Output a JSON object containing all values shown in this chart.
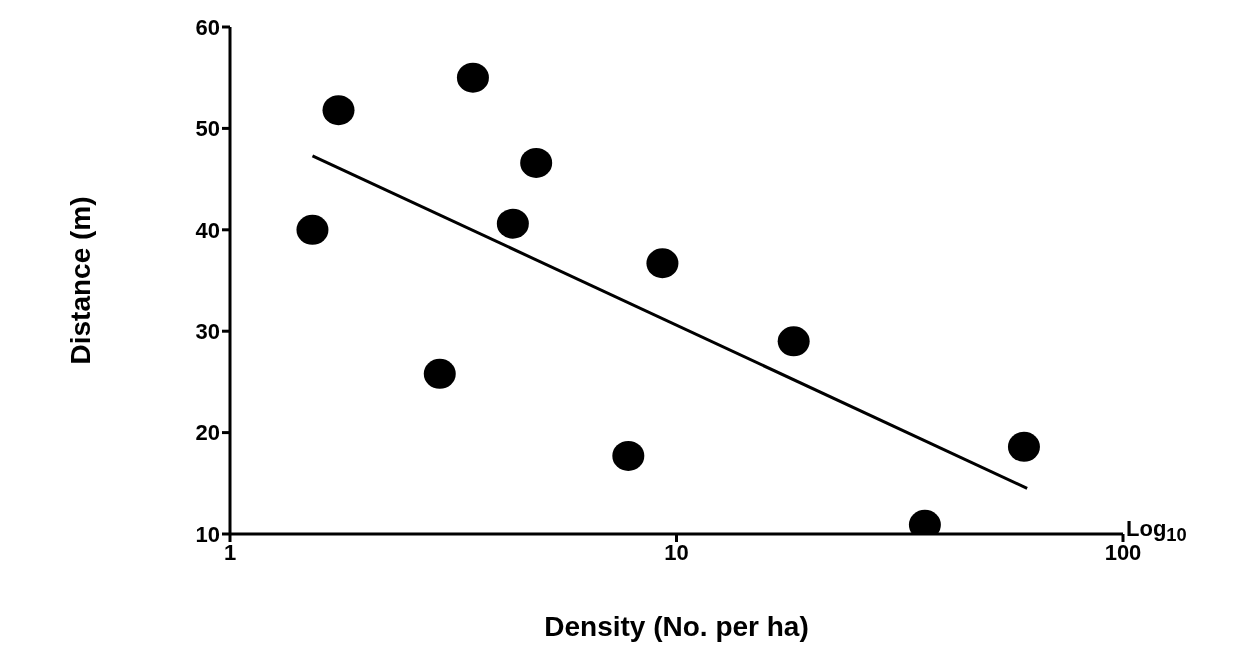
{
  "chart_data": {
    "type": "scatter",
    "xlabel": "Density (No. per ha)",
    "ylabel": "Distance (m)",
    "log": "x",
    "xlim": [
      1,
      100
    ],
    "xticks": [
      1,
      10,
      100
    ],
    "ylim": [
      10,
      60
    ],
    "yticks": [
      10,
      20,
      30,
      40,
      50,
      60
    ],
    "marker": "circle",
    "annotations": [
      "Log$_{10}$"
    ],
    "series": [
      {
        "color": "#000000",
        "x": [
          1.53,
          1.75,
          2.95,
          3.5,
          4.3,
          4.85,
          7.8,
          9.3,
          18.3,
          36,
          60
        ],
        "values": [
          40,
          51.8,
          25.8,
          55,
          40.6,
          46.6,
          17.7,
          36.7,
          29,
          10.9,
          18.6
        ]
      },
      {
        "type": "line",
        "color": "#000000",
        "marker": "none",
        "line_style": "solid",
        "x": [
          1.53,
          61
        ],
        "values": [
          47.3,
          14.5
        ]
      }
    ]
  }
}
